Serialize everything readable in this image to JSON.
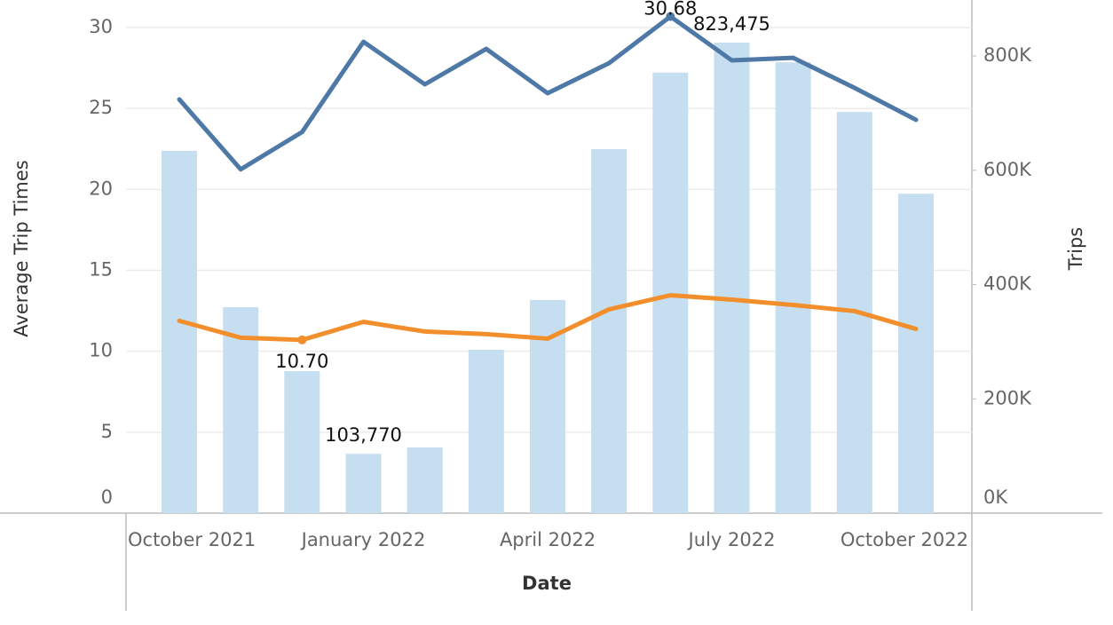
{
  "chart_data": {
    "type": "combo",
    "categories": [
      "October 2021",
      null,
      null,
      "January 2022",
      null,
      null,
      "April 2022",
      null,
      null,
      "July 2022",
      null,
      null,
      "October 2022"
    ],
    "x_label": "Date",
    "y_label": "Average Trip Times",
    "y2_label": "Trips",
    "ylim": [
      0,
      31.7
    ],
    "yticks": [
      0,
      5,
      10,
      15,
      20,
      25,
      30
    ],
    "y2lim": [
      0,
      898000
    ],
    "y2ticks": [
      {
        "value": 0,
        "label": "0K"
      },
      {
        "value": 200000,
        "label": "200K"
      },
      {
        "value": 400000,
        "label": "400K"
      },
      {
        "value": 600000,
        "label": "600K"
      },
      {
        "value": 800000,
        "label": "800K"
      }
    ],
    "grid": true,
    "series": [
      {
        "type": "bar",
        "axis": "y2",
        "color": "#c6dff0",
        "values": [
          634000,
          360500,
          248600,
          103770,
          115000,
          286000,
          373000,
          637000,
          771000,
          823475,
          789000,
          702000,
          559000
        ],
        "value_labels": [
          null,
          null,
          null,
          "103,770",
          null,
          null,
          null,
          null,
          null,
          "823,475",
          null,
          null,
          null
        ]
      },
      {
        "type": "line",
        "color": "#4e79a7",
        "values": [
          25.56,
          21.24,
          23.54,
          29.12,
          26.49,
          28.68,
          25.94,
          27.8,
          30.68,
          27.97,
          28.13,
          26.27,
          24.3
        ],
        "value_labels": [
          null,
          null,
          null,
          null,
          null,
          null,
          null,
          null,
          "30.68",
          null,
          null,
          null,
          null
        ]
      },
      {
        "type": "line",
        "color": "#f28e2b",
        "values": [
          11.88,
          10.84,
          10.7,
          11.82,
          11.22,
          11.06,
          10.78,
          12.59,
          13.46,
          13.19,
          12.86,
          12.48,
          11.38
        ],
        "value_labels": [
          null,
          null,
          "10.70",
          null,
          null,
          null,
          null,
          null,
          null,
          null,
          null,
          null,
          null
        ]
      }
    ]
  }
}
